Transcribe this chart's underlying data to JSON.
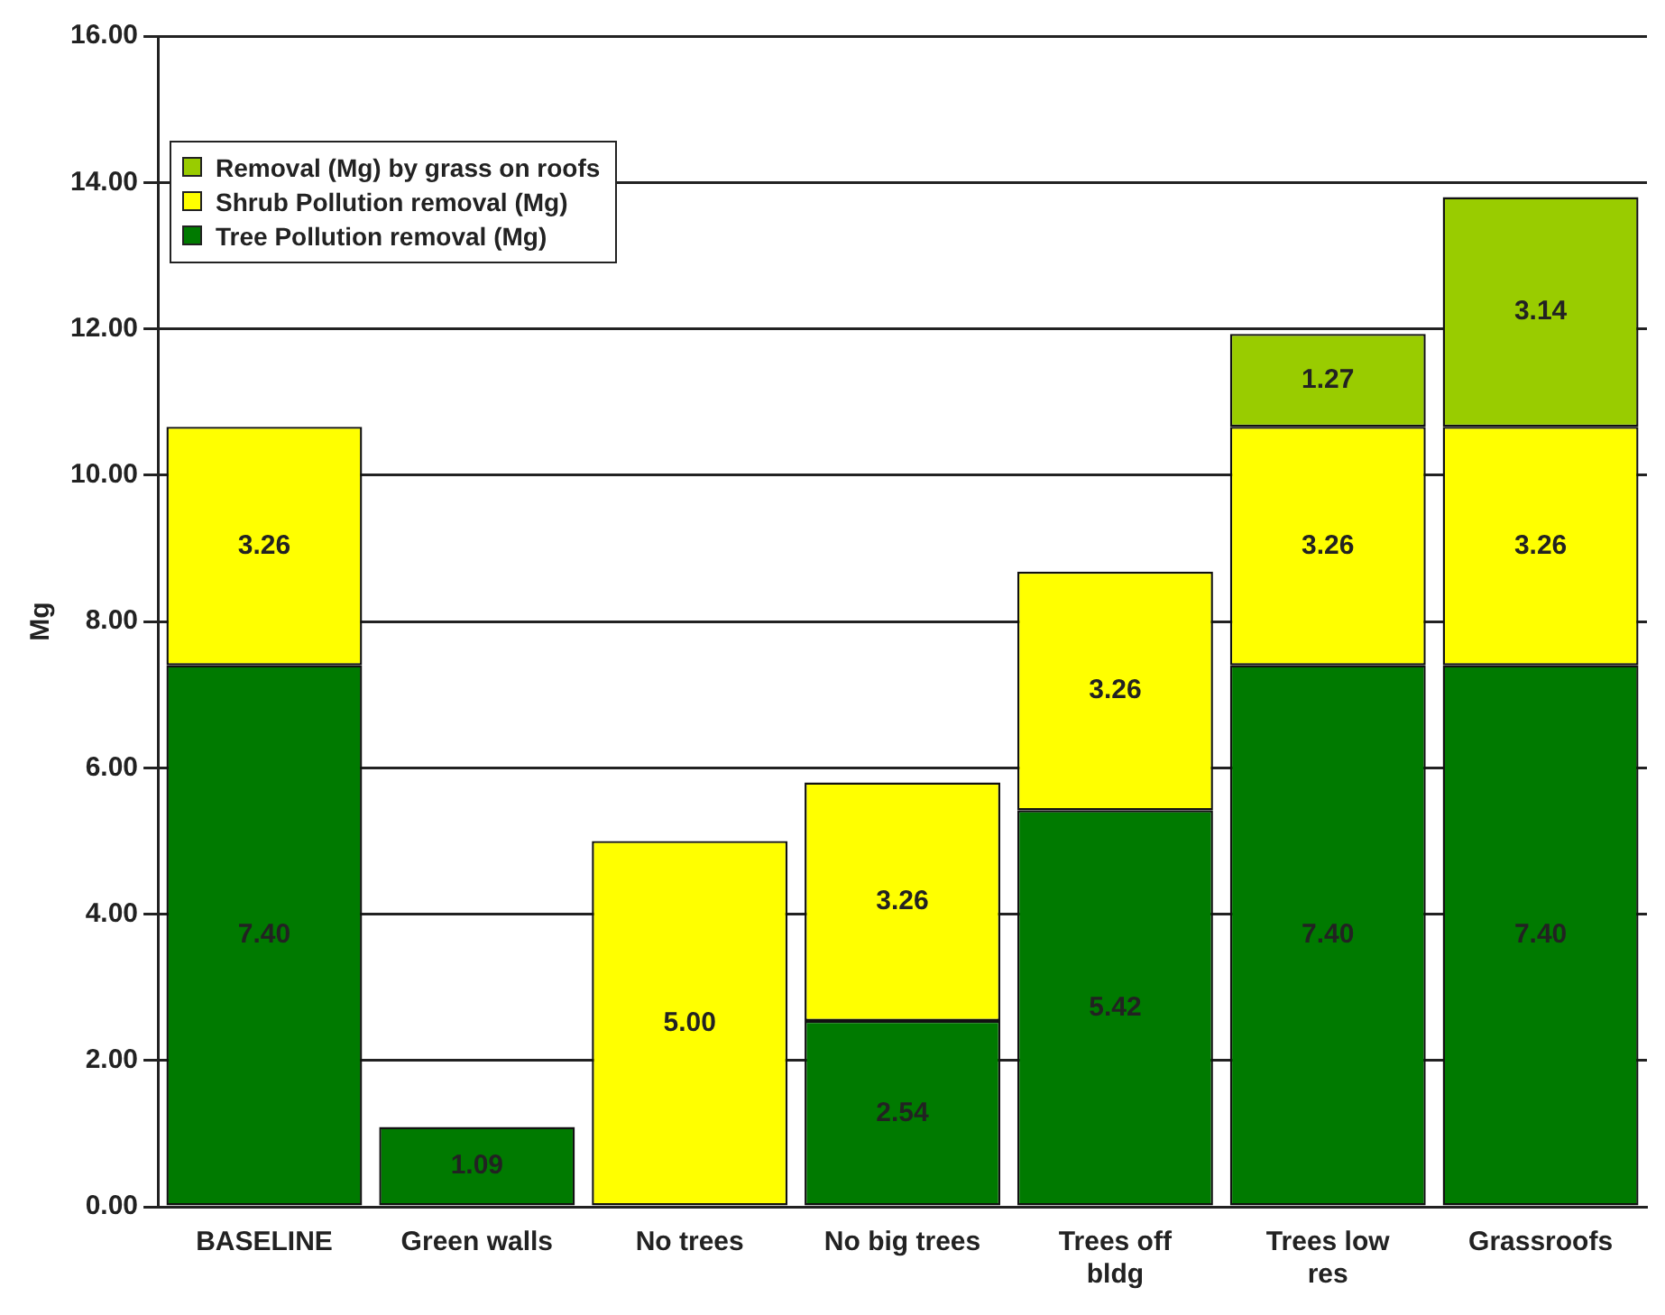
{
  "chart_data": {
    "type": "bar",
    "stacked": true,
    "ylabel": "Mg",
    "categories": [
      "BASELINE",
      "Green walls",
      "No trees",
      "No big trees",
      "Trees off bldg",
      "Trees low res",
      "Grassroofs"
    ],
    "series": [
      {
        "name": "Tree Pollution removal (Mg)",
        "color": "#007a00",
        "values": [
          7.4,
          1.09,
          null,
          2.54,
          5.42,
          7.4,
          7.4
        ],
        "value_labels": [
          "7.40",
          "1.09",
          null,
          "2.54",
          "5.42",
          "7.40",
          "7.40"
        ]
      },
      {
        "name": "Shrub Pollution removal (Mg)",
        "color": "#ffff00",
        "values": [
          3.26,
          null,
          5.0,
          3.26,
          3.26,
          3.26,
          3.26
        ],
        "value_labels": [
          "3.26",
          null,
          "5.00",
          "3.26",
          "3.26",
          "3.26",
          "3.26"
        ]
      },
      {
        "name": "Removal (Mg) by grass on roofs",
        "color": "#99cc00",
        "values": [
          null,
          null,
          null,
          null,
          null,
          1.27,
          3.14
        ],
        "value_labels": [
          null,
          null,
          null,
          null,
          null,
          "1.27",
          "3.14"
        ]
      }
    ],
    "ylim": [
      0,
      16
    ],
    "yticks": [
      {
        "value": 0,
        "label": "0.00"
      },
      {
        "value": 2,
        "label": "2.00"
      },
      {
        "value": 4,
        "label": "4.00"
      },
      {
        "value": 6,
        "label": "6.00"
      },
      {
        "value": 8,
        "label": "8.00"
      },
      {
        "value": 10,
        "label": "10.00"
      },
      {
        "value": 12,
        "label": "12.00"
      },
      {
        "value": 14,
        "label": "14.00"
      },
      {
        "value": 16,
        "label": "16.00"
      }
    ],
    "grid": "y",
    "legend": "top left"
  }
}
